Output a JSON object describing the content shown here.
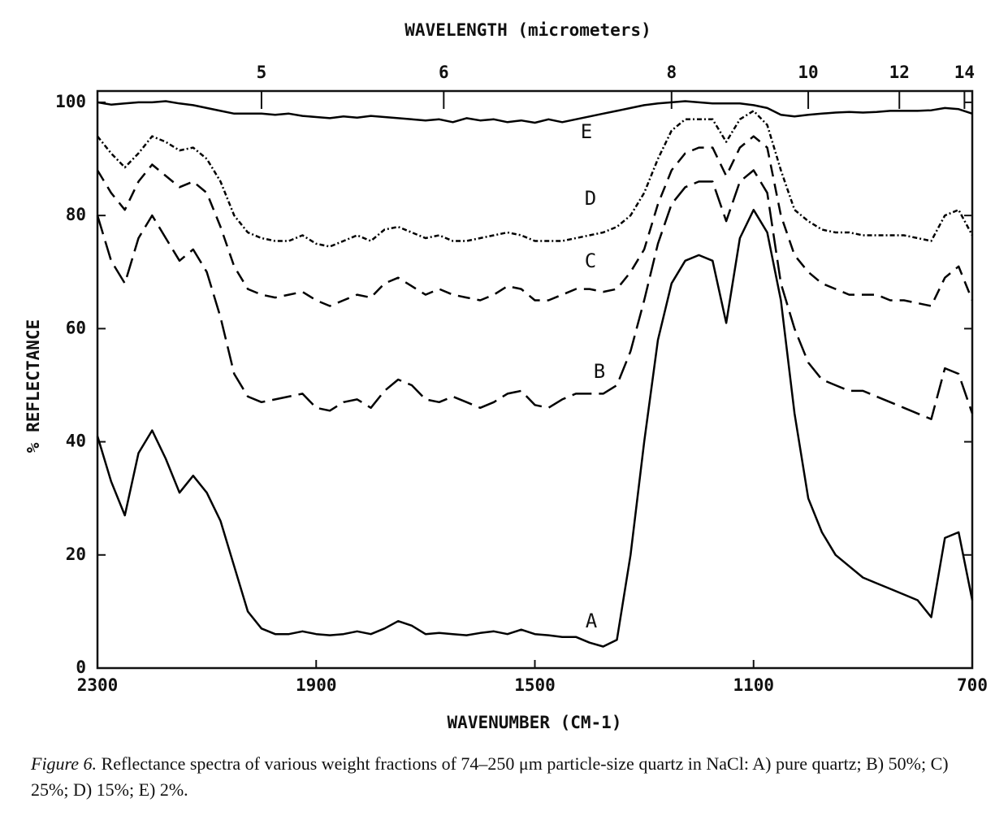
{
  "chart_data": {
    "type": "line",
    "title": "WAVELENGTH (micrometers)",
    "x_label": "WAVENUMBER (CM-1)",
    "y_label": "% REFLECTANCE",
    "xlim": [
      2300,
      700
    ],
    "ylim": [
      0,
      102
    ],
    "xticks": [
      2300,
      1900,
      1500,
      1100,
      700
    ],
    "yticks": [
      0,
      20,
      40,
      60,
      80,
      100
    ],
    "x2ticks": [
      5,
      6,
      8,
      10,
      12,
      14
    ],
    "x": [
      2300,
      2275,
      2250,
      2225,
      2200,
      2175,
      2150,
      2125,
      2100,
      2075,
      2050,
      2025,
      2000,
      1975,
      1950,
      1925,
      1900,
      1875,
      1850,
      1825,
      1800,
      1775,
      1750,
      1725,
      1700,
      1675,
      1650,
      1625,
      1600,
      1575,
      1550,
      1525,
      1500,
      1475,
      1450,
      1425,
      1400,
      1375,
      1350,
      1325,
      1300,
      1275,
      1250,
      1225,
      1200,
      1175,
      1150,
      1125,
      1100,
      1075,
      1050,
      1025,
      1000,
      975,
      950,
      925,
      900,
      875,
      850,
      825,
      800,
      775,
      750,
      725,
      700
    ],
    "series": [
      {
        "name": "A",
        "color": "#000000",
        "linestyle": "solid",
        "values": [
          41,
          33,
          27,
          38,
          42,
          37,
          31,
          34,
          31,
          26,
          18,
          10,
          7,
          6,
          6,
          6.5,
          6,
          5.8,
          6,
          6.5,
          6,
          7,
          8.3,
          7.5,
          6,
          6.2,
          6,
          5.8,
          6.2,
          6.5,
          6,
          6.8,
          6,
          5.8,
          5.5,
          5.5,
          4.5,
          3.8,
          5,
          20,
          40,
          58,
          68,
          72,
          73,
          72,
          61,
          76,
          81,
          77,
          65,
          45,
          30,
          24,
          20,
          18,
          16,
          15,
          14,
          13,
          12,
          9,
          23,
          24,
          12
        ]
      },
      {
        "name": "B",
        "color": "#000000",
        "linestyle": "longdash",
        "values": [
          80,
          72,
          68,
          76,
          80,
          76,
          72,
          74,
          70,
          62,
          52,
          48,
          47,
          47.5,
          48,
          48.5,
          46,
          45.5,
          47,
          47.5,
          46,
          49,
          51,
          50,
          47.5,
          47,
          48,
          47,
          46,
          47,
          48.5,
          49,
          46.5,
          46,
          47.5,
          48.5,
          48.5,
          48.5,
          50,
          56,
          65,
          75,
          82,
          85,
          86,
          86,
          79,
          86,
          88,
          84,
          68,
          60,
          54,
          51,
          50,
          49,
          49,
          48,
          47,
          46,
          45,
          44,
          53,
          52,
          45
        ]
      },
      {
        "name": "C",
        "color": "#000000",
        "linestyle": "dashed",
        "values": [
          88,
          84,
          81,
          86,
          89,
          87,
          85,
          86,
          84,
          78,
          71,
          67,
          66,
          65.5,
          66,
          66.5,
          65,
          64,
          65,
          66,
          65.5,
          68,
          69,
          67.5,
          66,
          67,
          66,
          65.5,
          65,
          66,
          67.5,
          67,
          65,
          65,
          66,
          67,
          67,
          66.5,
          67,
          70,
          74,
          82,
          88,
          91,
          92,
          92,
          87,
          92,
          94,
          92,
          80,
          73,
          70,
          68,
          67,
          66,
          66,
          66,
          65,
          65,
          64.5,
          64,
          69,
          71,
          65
        ]
      },
      {
        "name": "D",
        "color": "#000000",
        "linestyle": "dashdot",
        "values": [
          94,
          91,
          88.5,
          91,
          94,
          93,
          91.5,
          92,
          90,
          86,
          80,
          77,
          76,
          75.5,
          75.5,
          76.5,
          75,
          74.5,
          75.5,
          76.5,
          75.5,
          77.5,
          78,
          77,
          76,
          76.5,
          75.5,
          75.5,
          76,
          76.5,
          77,
          76.5,
          75.5,
          75.5,
          75.5,
          76,
          76.5,
          77,
          78,
          80,
          84,
          90,
          95,
          97,
          97,
          97,
          93,
          97,
          98.5,
          96,
          88,
          81,
          79,
          77.5,
          77,
          77,
          76.5,
          76.5,
          76.5,
          76.5,
          76,
          75.5,
          80,
          81,
          76.5
        ]
      },
      {
        "name": "E",
        "color": "#000000",
        "linestyle": "solid",
        "values": [
          100,
          99.6,
          99.8,
          100,
          100,
          100.2,
          99.8,
          99.5,
          99,
          98.5,
          98,
          98,
          98,
          97.8,
          98,
          97.6,
          97.4,
          97.2,
          97.5,
          97.3,
          97.6,
          97.4,
          97.2,
          97,
          96.8,
          97,
          96.5,
          97.2,
          96.8,
          97,
          96.5,
          96.8,
          96.4,
          97,
          96.5,
          97,
          97.5,
          98,
          98.5,
          99,
          99.5,
          99.8,
          100,
          100.2,
          100,
          99.8,
          99.8,
          99.8,
          99.5,
          99,
          97.8,
          97.5,
          97.8,
          98,
          98.2,
          98.3,
          98.2,
          98.3,
          98.5,
          98.5,
          98.5,
          98.6,
          99,
          98.8,
          98
        ]
      }
    ],
    "caption_label": "Figure 6.",
    "caption": "Reflectance spectra of various weight fractions of 74–250 μm particle-size quartz in NaCl: A) pure quartz; B) 50%; C) 25%; D) 15%; E) 2%."
  }
}
